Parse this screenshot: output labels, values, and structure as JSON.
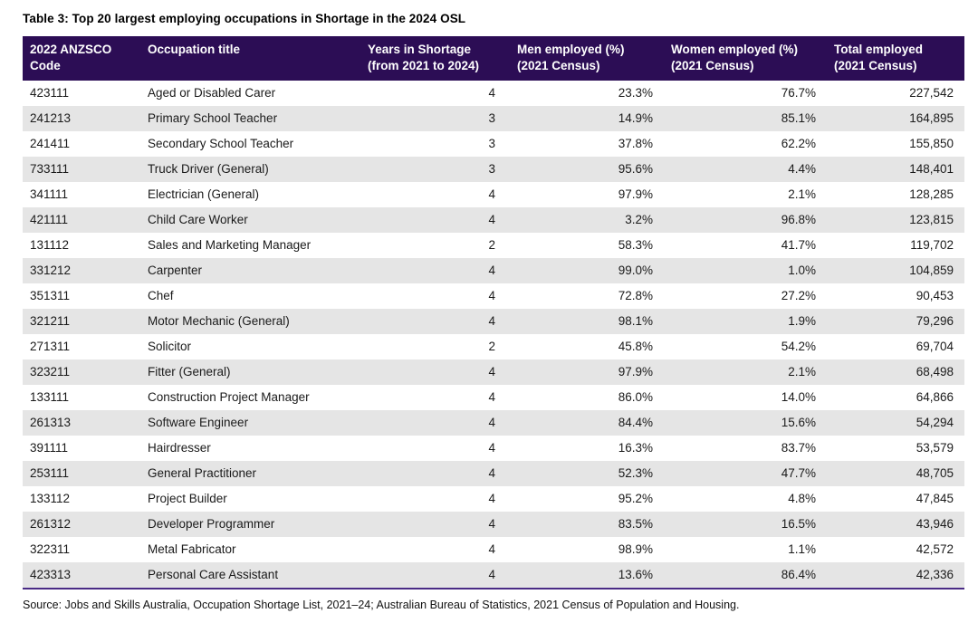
{
  "title": "Table 3: Top 20 largest employing occupations in Shortage in the 2024 OSL",
  "table": {
    "columns": [
      {
        "label": "2022 ANZSCO Code"
      },
      {
        "label": "Occupation title"
      },
      {
        "label": "Years in Shortage (from 2021 to 2024)"
      },
      {
        "label": "Men employed (%) (2021 Census)"
      },
      {
        "label": "Women employed (%) (2021 Census)"
      },
      {
        "label": "Total employed (2021 Census)"
      }
    ],
    "rows": [
      [
        "423111",
        "Aged or Disabled Carer",
        "4",
        "23.3%",
        "76.7%",
        "227,542"
      ],
      [
        "241213",
        "Primary School Teacher",
        "3",
        "14.9%",
        "85.1%",
        "164,895"
      ],
      [
        "241411",
        "Secondary School Teacher",
        "3",
        "37.8%",
        "62.2%",
        "155,850"
      ],
      [
        "733111",
        "Truck Driver (General)",
        "3",
        "95.6%",
        "4.4%",
        "148,401"
      ],
      [
        "341111",
        "Electrician (General)",
        "4",
        "97.9%",
        "2.1%",
        "128,285"
      ],
      [
        "421111",
        "Child Care Worker",
        "4",
        "3.2%",
        "96.8%",
        "123,815"
      ],
      [
        "131112",
        "Sales and Marketing Manager",
        "2",
        "58.3%",
        "41.7%",
        "119,702"
      ],
      [
        "331212",
        "Carpenter",
        "4",
        "99.0%",
        "1.0%",
        "104,859"
      ],
      [
        "351311",
        "Chef",
        "4",
        "72.8%",
        "27.2%",
        "90,453"
      ],
      [
        "321211",
        "Motor Mechanic (General)",
        "4",
        "98.1%",
        "1.9%",
        "79,296"
      ],
      [
        "271311",
        "Solicitor",
        "2",
        "45.8%",
        "54.2%",
        "69,704"
      ],
      [
        "323211",
        "Fitter (General)",
        "4",
        "97.9%",
        "2.1%",
        "68,498"
      ],
      [
        "133111",
        "Construction Project Manager",
        "4",
        "86.0%",
        "14.0%",
        "64,866"
      ],
      [
        "261313",
        "Software Engineer",
        "4",
        "84.4%",
        "15.6%",
        "54,294"
      ],
      [
        "391111",
        "Hairdresser",
        "4",
        "16.3%",
        "83.7%",
        "53,579"
      ],
      [
        "253111",
        "General Practitioner",
        "4",
        "52.3%",
        "47.7%",
        "48,705"
      ],
      [
        "133112",
        "Project Builder",
        "4",
        "95.2%",
        "4.8%",
        "47,845"
      ],
      [
        "261312",
        "Developer Programmer",
        "4",
        "83.5%",
        "16.5%",
        "43,946"
      ],
      [
        "322311",
        "Metal Fabricator",
        "4",
        "98.9%",
        "1.1%",
        "42,572"
      ],
      [
        "423313",
        "Personal Care Assistant",
        "4",
        "13.6%",
        "86.4%",
        "42,336"
      ]
    ]
  },
  "source": "Source: Jobs and Skills Australia, Occupation Shortage List, 2021–24; Australian Bureau of Statistics, 2021 Census of Population and Housing.",
  "colors": {
    "header_bg": "#2c0d55",
    "stripe": "#e5e5e5",
    "rule": "#4a2b85"
  }
}
